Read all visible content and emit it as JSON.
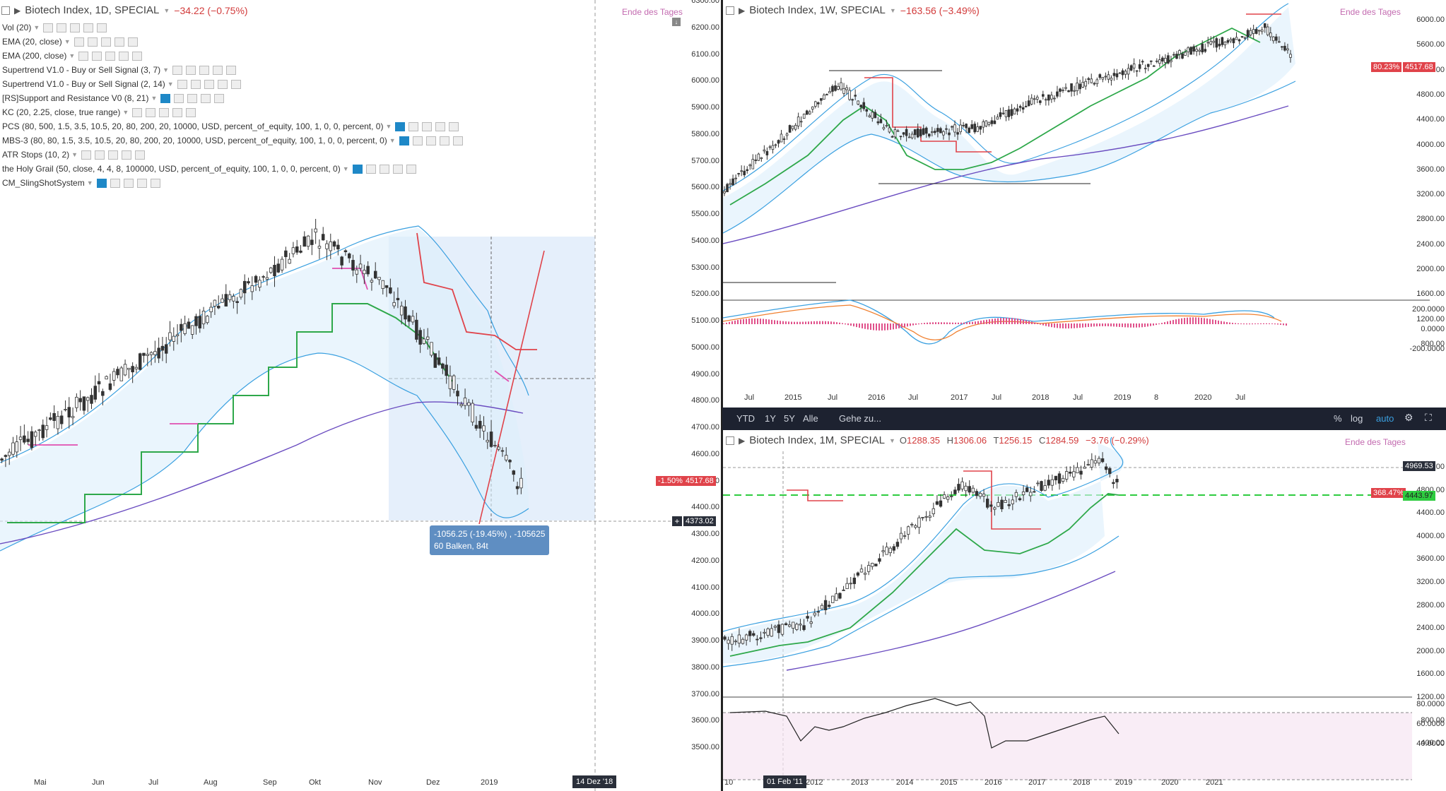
{
  "left_chart": {
    "title": "Biotech Index, 1D, SPECIAL",
    "change": "−34.22 (−0.75%)",
    "eod_label": "Ende des Tages",
    "indicators": [
      "Vol (20)",
      "EMA (20, close)",
      "EMA (200, close)",
      "Supertrend V1.0 - Buy or Sell Signal (3, 7)",
      "Supertrend V1.0 - Buy or Sell Signal (2, 14)",
      "[RS]Support and Resistance V0 (8, 21)",
      "KC (20, 2.25, close, true range)",
      "PCS (80, 500, 1.5, 3.5, 10.5, 20, 80, 200, 20, 10000, USD, percent_of_equity, 100, 1, 0, 0, percent, 0)",
      "MBS-3 (80, 80, 1.5, 3.5, 10.5, 20, 80, 200, 20, 10000, USD, percent_of_equity, 100, 1, 0, 0, percent, 0)",
      "ATR Stops (10, 2)",
      "the Holy Grail (50, close, 4, 4, 8, 100000, USD, percent_of_equity, 100, 1, 0, 0, percent, 0)",
      "CM_SlingShotSystem"
    ],
    "y_ticks": [
      "6300.00",
      "6200.00",
      "6100.00",
      "6000.00",
      "5900.00",
      "5800.00",
      "5700.00",
      "5600.00",
      "5500.00",
      "5400.00",
      "5300.00",
      "5200.00",
      "5100.00",
      "5000.00",
      "4900.00",
      "4800.00",
      "4700.00",
      "4600.00",
      "4500.00",
      "4400.00",
      "4300.00",
      "4200.00",
      "4100.00",
      "4000.00",
      "3900.00",
      "3800.00",
      "3700.00",
      "3600.00",
      "3500.00"
    ],
    "x_ticks": [
      "Mai",
      "Jun",
      "Jul",
      "Aug",
      "Sep",
      "Okt",
      "Nov",
      "Dez",
      "2019"
    ],
    "price_tag_pct": "-1.50%",
    "price_tag_value": "4517.68",
    "crosshair_value": "4373.02",
    "crosshair_date": "14 Dez '18",
    "measure_line1": "-1056.25 (-19.45%) , -105625",
    "measure_line2": "60 Balken, 84t",
    "colors": {
      "red": "#e0434a",
      "green": "#2ea84a",
      "blue": "#3aa0e0",
      "purple": "#6a4cc0",
      "pink": "#e050b0"
    }
  },
  "top_right_chart": {
    "title": "Biotech Index, 1W, SPECIAL",
    "change": "−163.56 (−3.49%)",
    "eod_label": "Ende des Tages",
    "y_ticks": [
      "6000.00",
      "5600.00",
      "5200.00",
      "4800.00",
      "4400.00",
      "4000.00",
      "3600.00",
      "3200.00",
      "2800.00",
      "2400.00",
      "2000.00",
      "1600.00",
      "1200.00",
      "800.00"
    ],
    "osc_ticks": [
      "200.0000",
      "0.0000",
      "-200.0000"
    ],
    "x_ticks": [
      "Jul",
      "2015",
      "Jul",
      "2016",
      "Jul",
      "2017",
      "Jul",
      "2018",
      "Jul",
      "2019",
      "8",
      "2020",
      "Jul"
    ],
    "price_tag_pct": "80.23%",
    "price_tag_value": "4517.68"
  },
  "toolbar": {
    "ranges": [
      "YTD",
      "1Y",
      "5Y",
      "Alle"
    ],
    "goto": "Gehe zu...",
    "percent": "%",
    "log": "log",
    "auto": "auto"
  },
  "bottom_right_chart": {
    "title": "Biotech Index, 1M, SPECIAL",
    "ohlc": {
      "o_label": "O",
      "o": "1288.35",
      "h_label": "H",
      "h": "1306.06",
      "t_label": "T",
      "t": "1256.15",
      "c_label": "C",
      "c": "1284.59",
      "chg": "−3.76 (−0.29%)"
    },
    "eod_label": "Ende des Tages",
    "y_ticks": [
      "5200.00",
      "4800.00",
      "4400.00",
      "4000.00",
      "3600.00",
      "3200.00",
      "2800.00",
      "2400.00",
      "2000.00",
      "1600.00",
      "1200.00",
      "800.00",
      "400.00"
    ],
    "osc_ticks": [
      "80.0000",
      "60.0000",
      "40.0000"
    ],
    "x_ticks": [
      "10",
      "2012",
      "2013",
      "2014",
      "2015",
      "2016",
      "2017",
      "2018",
      "2019",
      "2020",
      "2021"
    ],
    "date_tag": "01 Feb '11",
    "price_tag_a": "4969.53",
    "price_tag_b_pct": "368.47%",
    "price_tag_b": "4443.97"
  }
}
